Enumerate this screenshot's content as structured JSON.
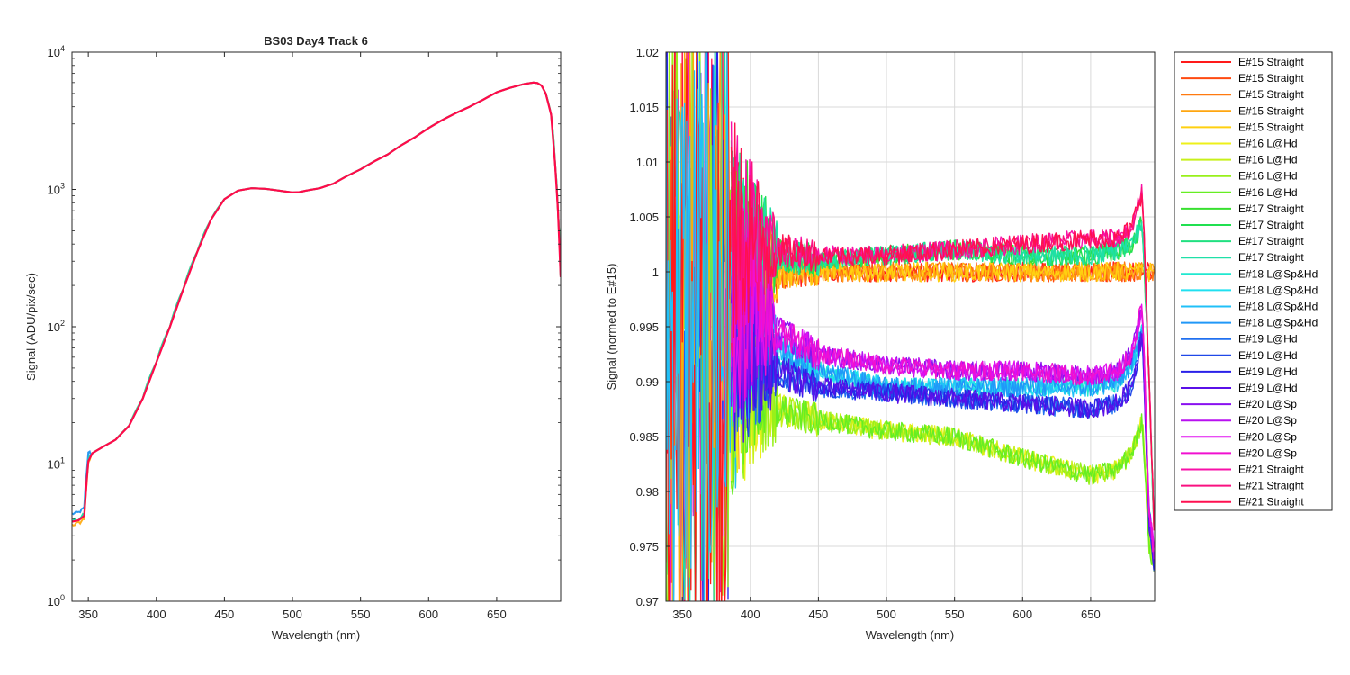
{
  "chart_data": [
    {
      "type": "line",
      "title": "BS03 Day4 Track 6",
      "xlabel": "Wavelength (nm)",
      "ylabel": "Signal (ADU/pix/sec)",
      "xlim": [
        338,
        697
      ],
      "ylim": [
        1,
        10000
      ],
      "yscale": "log",
      "xticks": [
        350,
        400,
        450,
        500,
        550,
        600,
        650
      ],
      "xtick_labels": [
        "350",
        "400",
        "450",
        "500",
        "550",
        "600",
        "650"
      ],
      "yticks": [
        1,
        10,
        100,
        1000,
        10000
      ],
      "ytick_labels": [
        {
          "base": "10",
          "exp": "0"
        },
        {
          "base": "10",
          "exp": "1"
        },
        {
          "base": "10",
          "exp": "2"
        },
        {
          "base": "10",
          "exp": "3"
        },
        {
          "base": "10",
          "exp": "4"
        }
      ],
      "grid": false,
      "series": [
        {
          "color": "#ff0a4a",
          "x": [
            338,
            343,
            347,
            349,
            350,
            353,
            360,
            370,
            380,
            390,
            400,
            410,
            420,
            430,
            440,
            450,
            460,
            470,
            480,
            490,
            500,
            505,
            510,
            520,
            530,
            540,
            550,
            560,
            570,
            580,
            590,
            600,
            610,
            620,
            630,
            640,
            650,
            660,
            670,
            677,
            680,
            683,
            686,
            690,
            693,
            695,
            697
          ],
          "y": [
            3.8,
            3.9,
            4.2,
            8,
            10.5,
            12,
            13.2,
            15,
            19,
            30,
            55,
            100,
            190,
            350,
            600,
            850,
            980,
            1020,
            1010,
            980,
            950,
            955,
            980,
            1020,
            1100,
            1250,
            1400,
            1600,
            1800,
            2100,
            2400,
            2800,
            3200,
            3600,
            4000,
            4500,
            5100,
            5500,
            5850,
            6000,
            5950,
            5700,
            5000,
            3500,
            1500,
            700,
            230
          ]
        }
      ]
    },
    {
      "type": "line",
      "title": "",
      "xlabel": "Wavelength (nm)",
      "ylabel": "Signal (normed to E#15)",
      "xlim": [
        338,
        697
      ],
      "ylim": [
        0.97,
        1.02
      ],
      "xticks": [
        350,
        400,
        450,
        500,
        550,
        600,
        650
      ],
      "xtick_labels": [
        "350",
        "400",
        "450",
        "500",
        "550",
        "600",
        "650"
      ],
      "yticks": [
        0.97,
        0.975,
        0.98,
        0.985,
        0.99,
        0.995,
        1,
        1.005,
        1.01,
        1.015,
        1.02
      ],
      "ytick_labels": [
        "0.97",
        "0.975",
        "0.98",
        "0.985",
        "0.99",
        "0.995",
        "1",
        "1.005",
        "1.01",
        "1.015",
        "1.02"
      ],
      "grid": true,
      "legend_position": "outside-right",
      "x": [
        400,
        420,
        450,
        500,
        550,
        600,
        650,
        670,
        680,
        688,
        693,
        697
      ],
      "series": [
        {
          "name": "E#15 Straight",
          "color": "#ff1a1a",
          "values": [
            1.0,
            1.0,
            1.0,
            1.0,
            1.0,
            1.0,
            1.0,
            1.0,
            1.0,
            1.0,
            1.0,
            1.0
          ]
        },
        {
          "name": "E#15 Straight",
          "color": "#ff4a10",
          "values": [
            1.0,
            1.0,
            1.0,
            1.0,
            1.0,
            1.0,
            1.0,
            1.0,
            1.0,
            1.0,
            1.0,
            1.0
          ]
        },
        {
          "name": "E#15 Straight",
          "color": "#ff7a10",
          "values": [
            1.0,
            1.0,
            1.0,
            1.0,
            1.0,
            1.0,
            1.0,
            1.0,
            1.0,
            1.0,
            1.0,
            1.0
          ]
        },
        {
          "name": "E#15 Straight",
          "color": "#ffa610",
          "values": [
            1.0,
            1.0,
            1.0,
            1.0,
            1.0,
            1.0,
            1.0,
            1.0,
            1.0,
            1.0,
            1.0,
            1.0
          ]
        },
        {
          "name": "E#15 Straight",
          "color": "#ffd010",
          "values": [
            1.0,
            1.0,
            1.0,
            1.0,
            1.0,
            1.0,
            1.0,
            1.0,
            1.0,
            1.0,
            1.0,
            1.0
          ]
        },
        {
          "name": "E#16 L@Hd",
          "color": "#eef01a",
          "values": [
            0.99,
            0.9875,
            0.9865,
            0.9855,
            0.985,
            0.983,
            0.9815,
            0.982,
            0.9835,
            0.9865,
            0.975,
            0.973
          ]
        },
        {
          "name": "E#16 L@Hd",
          "color": "#c8f01a",
          "values": [
            0.99,
            0.9875,
            0.9865,
            0.9855,
            0.985,
            0.983,
            0.9815,
            0.982,
            0.9835,
            0.9865,
            0.975,
            0.973
          ]
        },
        {
          "name": "E#16 L@Hd",
          "color": "#98f01a",
          "values": [
            0.99,
            0.9875,
            0.9865,
            0.9855,
            0.985,
            0.983,
            0.9815,
            0.982,
            0.9835,
            0.9865,
            0.975,
            0.973
          ]
        },
        {
          "name": "E#16 L@Hd",
          "color": "#66ee22",
          "values": [
            0.99,
            0.9875,
            0.9865,
            0.9855,
            0.985,
            0.983,
            0.9815,
            0.982,
            0.9835,
            0.9865,
            0.975,
            0.973
          ]
        },
        {
          "name": "E#17 Straight",
          "color": "#38e030",
          "values": [
            1.002,
            1.0015,
            1.001,
            1.0015,
            1.002,
            1.0015,
            1.0015,
            1.002,
            1.0025,
            1.0045,
            0.99,
            0.975
          ]
        },
        {
          "name": "E#17 Straight",
          "color": "#20e050",
          "values": [
            1.002,
            1.0015,
            1.001,
            1.0015,
            1.002,
            1.0015,
            1.0015,
            1.002,
            1.0025,
            1.0045,
            0.99,
            0.975
          ]
        },
        {
          "name": "E#17 Straight",
          "color": "#20e080",
          "values": [
            1.002,
            1.0015,
            1.001,
            1.0015,
            1.002,
            1.0015,
            1.0015,
            1.002,
            1.0025,
            1.0045,
            0.99,
            0.975
          ]
        },
        {
          "name": "E#17 Straight",
          "color": "#20e0a8",
          "values": [
            1.002,
            1.0015,
            1.001,
            1.0015,
            1.002,
            1.0015,
            1.0015,
            1.002,
            1.0025,
            1.0045,
            0.99,
            0.975
          ]
        },
        {
          "name": "E#18 L@Sp&Hd",
          "color": "#20e8d0",
          "values": [
            0.995,
            0.993,
            0.991,
            0.9895,
            0.9895,
            0.9895,
            0.9895,
            0.99,
            0.9915,
            0.9945,
            0.978,
            0.974
          ]
        },
        {
          "name": "E#18 L@Sp&Hd",
          "color": "#20e0f0",
          "values": [
            0.995,
            0.993,
            0.991,
            0.9895,
            0.9895,
            0.9895,
            0.9895,
            0.99,
            0.9915,
            0.9945,
            0.978,
            0.974
          ]
        },
        {
          "name": "E#18 L@Sp&Hd",
          "color": "#20c0f8",
          "values": [
            0.995,
            0.993,
            0.991,
            0.9895,
            0.9895,
            0.9895,
            0.9895,
            0.99,
            0.9915,
            0.9945,
            0.978,
            0.974
          ]
        },
        {
          "name": "E#18 L@Sp&Hd",
          "color": "#2098f8",
          "values": [
            0.995,
            0.993,
            0.991,
            0.9895,
            0.9895,
            0.9895,
            0.9895,
            0.99,
            0.9915,
            0.9945,
            0.978,
            0.974
          ]
        },
        {
          "name": "E#19 L@Hd",
          "color": "#2070f0",
          "values": [
            0.993,
            0.991,
            0.9895,
            0.989,
            0.9885,
            0.988,
            0.9875,
            0.988,
            0.9895,
            0.9945,
            0.977,
            0.973
          ]
        },
        {
          "name": "E#19 L@Hd",
          "color": "#2048e8",
          "values": [
            0.993,
            0.991,
            0.9895,
            0.989,
            0.9885,
            0.988,
            0.9875,
            0.988,
            0.9895,
            0.9945,
            0.977,
            0.973
          ]
        },
        {
          "name": "E#19 L@Hd",
          "color": "#2a20e8",
          "values": [
            0.993,
            0.991,
            0.9895,
            0.989,
            0.9885,
            0.988,
            0.9875,
            0.988,
            0.9895,
            0.9945,
            0.977,
            0.973
          ]
        },
        {
          "name": "E#19 L@Hd",
          "color": "#5a10e8",
          "values": [
            0.993,
            0.991,
            0.9895,
            0.989,
            0.9885,
            0.988,
            0.9875,
            0.988,
            0.9895,
            0.9945,
            0.977,
            0.973
          ]
        },
        {
          "name": "E#20 L@Sp",
          "color": "#8a10f0",
          "values": [
            0.997,
            0.9945,
            0.9925,
            0.9915,
            0.991,
            0.991,
            0.9905,
            0.991,
            0.9925,
            0.997,
            0.978,
            0.974
          ]
        },
        {
          "name": "E#20 L@Sp",
          "color": "#b810f0",
          "values": [
            0.997,
            0.9945,
            0.9925,
            0.9915,
            0.991,
            0.991,
            0.9905,
            0.991,
            0.9925,
            0.997,
            0.978,
            0.974
          ]
        },
        {
          "name": "E#20 L@Sp",
          "color": "#e010f0",
          "values": [
            0.997,
            0.9945,
            0.9925,
            0.9915,
            0.991,
            0.991,
            0.9905,
            0.991,
            0.9925,
            0.997,
            0.978,
            0.974
          ]
        },
        {
          "name": "E#20 L@Sp",
          "color": "#f010d0",
          "values": [
            0.997,
            0.9945,
            0.9925,
            0.9915,
            0.991,
            0.991,
            0.9905,
            0.991,
            0.9925,
            0.997,
            0.978,
            0.974
          ]
        },
        {
          "name": "E#21 Straight",
          "color": "#f810a8",
          "values": [
            1.003,
            1.002,
            1.0015,
            1.0015,
            1.002,
            1.0025,
            1.003,
            1.003,
            1.004,
            1.0075,
            0.99,
            0.975
          ]
        },
        {
          "name": "E#21 Straight",
          "color": "#fa1080",
          "values": [
            1.003,
            1.002,
            1.0015,
            1.0015,
            1.002,
            1.0025,
            1.003,
            1.003,
            1.004,
            1.0075,
            0.99,
            0.975
          ]
        },
        {
          "name": "E#21 Straight",
          "color": "#ff1050",
          "values": [
            1.003,
            1.002,
            1.0015,
            1.0015,
            1.002,
            1.0025,
            1.003,
            1.003,
            1.004,
            1.0075,
            0.99,
            0.975
          ]
        }
      ]
    }
  ]
}
